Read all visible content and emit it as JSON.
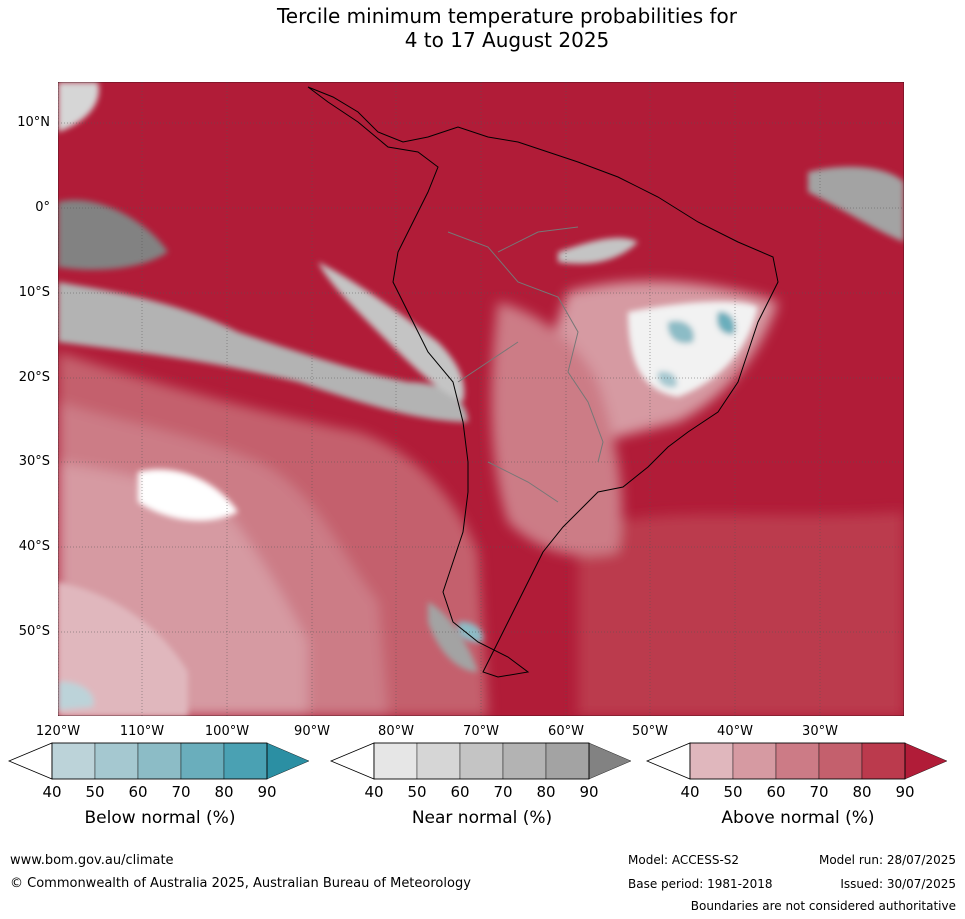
{
  "title_line1": "Tercile minimum temperature probabilities for",
  "title_line2": "4 to 17 August 2025",
  "lat_labels": [
    "10°N",
    "0°",
    "10°S",
    "20°S",
    "30°S",
    "40°S",
    "50°S"
  ],
  "lon_labels": [
    "120°W",
    "110°W",
    "100°W",
    "90°W",
    "80°W",
    "70°W",
    "60°W",
    "50°W",
    "40°W",
    "30°W"
  ],
  "colorbars": [
    {
      "title": "Below normal (%)",
      "ticks": [
        "40",
        "50",
        "60",
        "70",
        "80",
        "90"
      ],
      "colors": [
        "#bcd3d9",
        "#a5c8d0",
        "#8cbcc6",
        "#6aaebc",
        "#4aa1b3",
        "#2b8fa3"
      ]
    },
    {
      "title": "Near normal (%)",
      "ticks": [
        "40",
        "50",
        "60",
        "70",
        "80",
        "90"
      ],
      "colors": [
        "#e6e6e6",
        "#d6d6d6",
        "#c4c4c4",
        "#b3b3b3",
        "#a3a3a3",
        "#828282"
      ]
    },
    {
      "title": "Above normal (%)",
      "ticks": [
        "40",
        "50",
        "60",
        "70",
        "80",
        "90"
      ],
      "colors": [
        "#e0b7bd",
        "#d69aa2",
        "#cc7b86",
        "#c4606d",
        "#bb3a4d",
        "#b11c38"
      ]
    }
  ],
  "footer": {
    "website": "www.bom.gov.au/climate",
    "copyright": "© Commonwealth of Australia 2025, Australian Bureau of Meteorology",
    "model": "Model: ACCESS-S2",
    "base_period": "Base period: 1981-2018",
    "model_run": "Model run: 28/07/2025",
    "issued": "Issued: 30/07/2025",
    "disclaimer": "Boundaries are not considered authoritative"
  }
}
